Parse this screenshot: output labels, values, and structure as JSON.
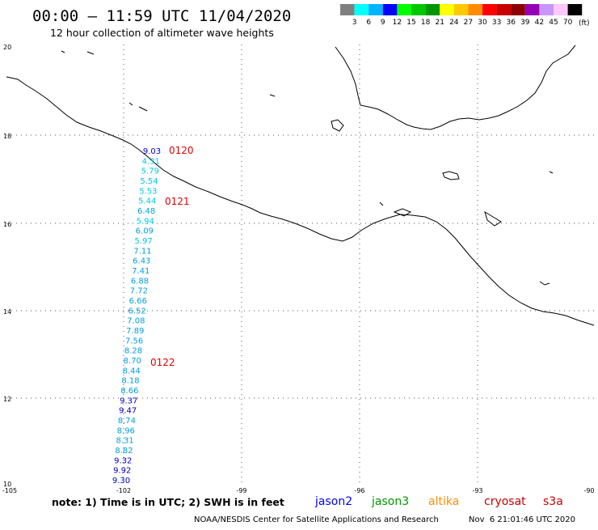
{
  "header": {
    "title": "00:00 – 11:59 UTC 11/04/2020",
    "subtitle": "12 hour collection of altimeter wave heights"
  },
  "legend": {
    "unit": "(ft)",
    "bins": [
      {
        "label": "3",
        "color": "#808080"
      },
      {
        "label": "6",
        "color": "#00ffff"
      },
      {
        "label": "9",
        "color": "#00b4ff"
      },
      {
        "label": "12",
        "color": "#0000ff"
      },
      {
        "label": "15",
        "color": "#00ff00"
      },
      {
        "label": "18",
        "color": "#00c800"
      },
      {
        "label": "21",
        "color": "#009600"
      },
      {
        "label": "24",
        "color": "#ffff00"
      },
      {
        "label": "27",
        "color": "#ffc800"
      },
      {
        "label": "30",
        "color": "#ff8c00"
      },
      {
        "label": "33",
        "color": "#ff0000"
      },
      {
        "label": "36",
        "color": "#c80000"
      },
      {
        "label": "39",
        "color": "#8c0000"
      },
      {
        "label": "42",
        "color": "#9600b4"
      },
      {
        "label": "45",
        "color": "#c896ff"
      },
      {
        "label": "70",
        "color": "#ffc8ff"
      },
      {
        "label": "",
        "color": "#000000"
      }
    ]
  },
  "map": {
    "lon_range": [
      -105,
      -90
    ],
    "lat_range": [
      10,
      20
    ],
    "lon_ticks": [
      "-105",
      "-102",
      "-99",
      "-96",
      "-93",
      "-90"
    ],
    "lat_ticks": [
      "20",
      "18",
      "16",
      "14",
      "12",
      "10"
    ],
    "track_times": [
      "0120",
      "0121",
      "0122"
    ],
    "track_time_color": "#e00000",
    "track_readings": [
      {
        "value": "9.03",
        "color": "#0000c8"
      },
      {
        "value": "4.31",
        "color": "#00c8e6"
      },
      {
        "value": "5.79",
        "color": "#00c8e6"
      },
      {
        "value": "5.54",
        "color": "#00c8e6"
      },
      {
        "value": "5.53",
        "color": "#00c8e6"
      },
      {
        "value": "5.44",
        "color": "#00c8e6"
      },
      {
        "value": "6.48",
        "color": "#00a0dc"
      },
      {
        "value": "5.94",
        "color": "#00c8e6"
      },
      {
        "value": "6.09",
        "color": "#00a0dc"
      },
      {
        "value": "5.97",
        "color": "#00c8e6"
      },
      {
        "value": "7.11",
        "color": "#00a0dc"
      },
      {
        "value": "6.43",
        "color": "#00a0dc"
      },
      {
        "value": "7.41",
        "color": "#00a0dc"
      },
      {
        "value": "6.88",
        "color": "#00a0dc"
      },
      {
        "value": "7.72",
        "color": "#00a0dc"
      },
      {
        "value": "6.66",
        "color": "#00a0dc"
      },
      {
        "value": "6.52",
        "color": "#00a0dc"
      },
      {
        "value": "7.08",
        "color": "#00a0dc"
      },
      {
        "value": "7.89",
        "color": "#00a0dc"
      },
      {
        "value": "7.56",
        "color": "#00a0dc"
      },
      {
        "value": "8.28",
        "color": "#00a0dc"
      },
      {
        "value": "8.70",
        "color": "#00a0dc"
      },
      {
        "value": "8.44",
        "color": "#00a0dc"
      },
      {
        "value": "8.18",
        "color": "#00a0dc"
      },
      {
        "value": "8.66",
        "color": "#00a0dc"
      },
      {
        "value": "9.37",
        "color": "#0000c8"
      },
      {
        "value": "9.47",
        "color": "#0000c8"
      },
      {
        "value": "8.74",
        "color": "#00a0dc"
      },
      {
        "value": "8.96",
        "color": "#00a0dc"
      },
      {
        "value": "8.31",
        "color": "#00a0dc"
      },
      {
        "value": "8.82",
        "color": "#00a0dc"
      },
      {
        "value": "9.32",
        "color": "#0000c8"
      },
      {
        "value": "9.92",
        "color": "#0000c8"
      },
      {
        "value": "9.30",
        "color": "#0000c8"
      }
    ]
  },
  "footer": {
    "note": "note: 1) Time is in UTC; 2) SWH is in feet",
    "satellites": [
      {
        "name": "jason2",
        "color": "#0000ff"
      },
      {
        "name": "jason3",
        "color": "#009600"
      },
      {
        "name": "altika",
        "color": "#ff8c00"
      },
      {
        "name": "cryosat",
        "color": "#c80000"
      },
      {
        "name": "s3a",
        "color": "#c80000"
      }
    ],
    "credit": "NOAA/NESDIS Center for Satellite Applications and Research",
    "timestamp": "Nov  6 21:01:46 UTC 2020"
  }
}
